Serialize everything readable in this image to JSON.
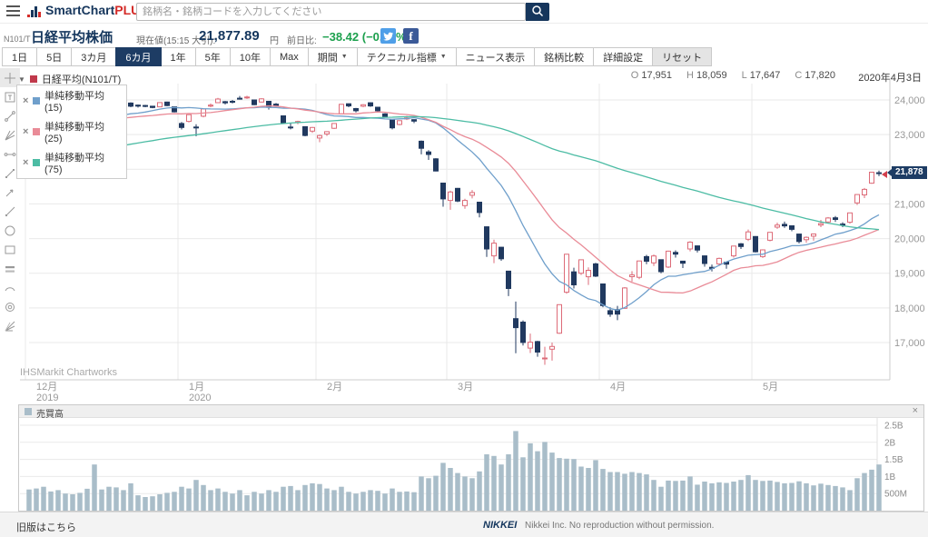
{
  "app": {
    "brand_primary": "SmartChart",
    "brand_suffix": "PLUS",
    "search_placeholder": "銘柄名・銘柄コードを入力してください"
  },
  "quote": {
    "code": "N101/T",
    "name": "日経平均株価",
    "current_label": "現在値(15:15 大引):",
    "price": "21,877.89",
    "unit": "円",
    "change_label": "前日比:",
    "change": "−38.42 (−0.18%)",
    "change_color": "#1ca04d",
    "facebook_glyph": "f"
  },
  "toolbar": {
    "periods": [
      "1日",
      "5日",
      "3カ月",
      "6カ月",
      "1年",
      "5年",
      "10年",
      "Max"
    ],
    "selected_period": "6カ月",
    "dropdowns": [
      "期間",
      "テクニカル指標"
    ],
    "actions": [
      "ニュース表示",
      "銘柄比較",
      "詳細設定"
    ],
    "reset": "リセット"
  },
  "chart": {
    "ohlc": {
      "o_label": "O",
      "o": "17,951",
      "h_label": "H",
      "h": "18,059",
      "l_label": "L",
      "l": "17,647",
      "c_label": "C",
      "c": "17,820"
    },
    "date": "2020年4月3日",
    "series_legend": {
      "label": "日経平均(N101/T)",
      "color": "#c0394b"
    },
    "overlays": [
      {
        "label": "単純移動平均 (15)",
        "color": "#6f9fcb"
      },
      {
        "label": "単純移動平均 (25)",
        "color": "#e98b97"
      },
      {
        "label": "単純移動平均 (75)",
        "color": "#4cbca4"
      }
    ],
    "price_badge": "21,878",
    "watermark": "IHSMarkit Chartworks"
  },
  "volume_panel": {
    "title": "売買高",
    "close_label": "×",
    "y_ticks": [
      "2.5B",
      "2B",
      "1.5B",
      "1B",
      "500M"
    ]
  },
  "footer": {
    "old_version": "旧版はこちら",
    "nikkei_logo": "NIKKEI",
    "copyright": "Nikkei Inc. No reproduction without permission."
  },
  "drawing_tools": [
    "crosshair-tool",
    "text-annotation-tool",
    "trendline-tool",
    "fan-line-tool",
    "measure-tool",
    "segment-tool",
    "arrow-line-tool",
    "ray-line-tool",
    "ellipse-tool",
    "rectangle-tool",
    "parallel-channel-tool",
    "arc-tool",
    "circle-target-tool",
    "fibonacci-fan-tool"
  ],
  "chart_data": {
    "type": "candlestick",
    "instrument": "日経平均株価 (N101/T)",
    "timeframe": "6カ月 (daily)",
    "y_axis_ticks": [
      24000,
      23000,
      22000,
      21000,
      20000,
      19000,
      18000,
      17000
    ],
    "volume_ticks": [
      2500,
      2000,
      1500,
      1000,
      500
    ],
    "current_price": 21877.89,
    "months": [
      {
        "label": "12月",
        "sublabel": "2019",
        "day_index": 0
      },
      {
        "label": "1月",
        "sublabel": "2020",
        "day_index": 21
      },
      {
        "label": "2月",
        "sublabel": "",
        "day_index": 40
      },
      {
        "label": "3月",
        "sublabel": "",
        "day_index": 58
      },
      {
        "label": "4月",
        "sublabel": "",
        "day_index": 79
      },
      {
        "label": "5月",
        "sublabel": "",
        "day_index": 100
      }
    ],
    "sma_windows": [
      {
        "window": 15,
        "color": "#6f9fcb"
      },
      {
        "window": 25,
        "color": "#e98b97"
      },
      {
        "window": 75,
        "color": "#4cbca4"
      }
    ],
    "sma_seed_anchors": [
      20420,
      20610,
      21050,
      21460,
      21710,
      22050,
      22380,
      22750,
      23050,
      23290,
      23380,
      23300
    ],
    "colors": {
      "up_fill": "#ffffff",
      "up_border": "#dd6b78",
      "down": "#20395f",
      "volume": "#a9bdc9"
    },
    "candles": [
      [
        23400,
        23530,
        23350,
        23529,
        620
      ],
      [
        23430,
        23450,
        23280,
        23379,
        650
      ],
      [
        23250,
        23270,
        23060,
        23135,
        700
      ],
      [
        23220,
        23330,
        23180,
        23300,
        560
      ],
      [
        23370,
        23420,
        23270,
        23354,
        600
      ],
      [
        23410,
        23470,
        23350,
        23430,
        500
      ],
      [
        23400,
        23450,
        23340,
        23410,
        480
      ],
      [
        23430,
        23450,
        23360,
        23391,
        520
      ],
      [
        23450,
        23480,
        23360,
        23424,
        640
      ],
      [
        23780,
        24050,
        23760,
        24023,
        1350
      ],
      [
        24020,
        24040,
        23900,
        23952,
        620
      ],
      [
        24010,
        24091,
        23980,
        24066,
        700
      ],
      [
        24050,
        24060,
        23920,
        23934,
        680
      ],
      [
        23930,
        23950,
        23820,
        23864,
        600
      ],
      [
        23910,
        23930,
        23790,
        23817,
        800
      ],
      [
        23850,
        23870,
        23780,
        23821,
        450
      ],
      [
        23840,
        23860,
        23790,
        23830,
        400
      ],
      [
        23820,
        23830,
        23760,
        23782,
        420
      ],
      [
        23800,
        23930,
        23790,
        23924,
        480
      ],
      [
        23940,
        23950,
        23820,
        23837,
        520
      ],
      [
        23800,
        23810,
        23640,
        23656,
        550
      ],
      [
        23320,
        23365,
        23149,
        23205,
        700
      ],
      [
        23380,
        23580,
        23350,
        23575,
        650
      ],
      [
        23220,
        23300,
        22951,
        23204,
        900
      ],
      [
        23530,
        23750,
        23500,
        23740,
        750
      ],
      [
        23820,
        23900,
        23790,
        23850,
        600
      ],
      [
        23920,
        24060,
        23910,
        24025,
        650
      ],
      [
        23950,
        23970,
        23870,
        23916,
        550
      ],
      [
        23960,
        24000,
        23900,
        23933,
        500
      ],
      [
        24050,
        24115,
        24010,
        24041,
        600
      ],
      [
        24080,
        24120,
        24030,
        24084,
        450
      ],
      [
        24000,
        24010,
        23850,
        23864,
        550
      ],
      [
        23940,
        24050,
        23930,
        24031,
        500
      ],
      [
        23960,
        23970,
        23720,
        23795,
        600
      ],
      [
        23880,
        23910,
        23800,
        23827,
        550
      ],
      [
        23540,
        23550,
        23320,
        23344,
        700
      ],
      [
        23220,
        23320,
        23150,
        23216,
        720
      ],
      [
        23350,
        23400,
        23300,
        23379,
        600
      ],
      [
        23230,
        23240,
        22950,
        22977,
        750
      ],
      [
        23100,
        23220,
        23050,
        23205,
        800
      ],
      [
        22900,
        23000,
        22780,
        22972,
        780
      ],
      [
        23020,
        23100,
        22960,
        23085,
        650
      ],
      [
        23180,
        23330,
        23160,
        23320,
        600
      ],
      [
        23600,
        23880,
        23580,
        23874,
        700
      ],
      [
        23890,
        23900,
        23790,
        23828,
        550
      ],
      [
        23750,
        23770,
        23640,
        23686,
        500
      ],
      [
        23820,
        23880,
        23790,
        23861,
        550
      ],
      [
        23920,
        23930,
        23800,
        23828,
        600
      ],
      [
        23790,
        23800,
        23660,
        23687,
        580
      ],
      [
        23600,
        23620,
        23500,
        23524,
        500
      ],
      [
        23430,
        23440,
        23150,
        23194,
        650
      ],
      [
        23290,
        23410,
        23270,
        23401,
        550
      ],
      [
        23470,
        23540,
        23420,
        23479,
        560
      ],
      [
        23430,
        23440,
        23330,
        23387,
        540
      ],
      [
        22810,
        22830,
        22430,
        22605,
        1000
      ],
      [
        22500,
        22550,
        22270,
        22426,
        950
      ],
      [
        22300,
        22320,
        21940,
        21948,
        1020
      ],
      [
        21600,
        21610,
        20920,
        21143,
        1400
      ],
      [
        21100,
        21380,
        20830,
        21344,
        1250
      ],
      [
        21450,
        21460,
        21050,
        21082,
        1100
      ],
      [
        20950,
        21150,
        20860,
        21100,
        1000
      ],
      [
        21250,
        21400,
        21160,
        21329,
        950
      ],
      [
        21050,
        21060,
        20610,
        20750,
        1150
      ],
      [
        20340,
        20350,
        19472,
        19699,
        1650
      ],
      [
        19500,
        19970,
        19290,
        19867,
        1600
      ],
      [
        19750,
        19760,
        19360,
        19416,
        1350
      ],
      [
        19060,
        19070,
        18340,
        18560,
        1650
      ],
      [
        17690,
        18184,
        16691,
        17431,
        2330
      ],
      [
        17590,
        17640,
        16914,
        17002,
        1560
      ],
      [
        16840,
        17260,
        16700,
        17011,
        1970
      ],
      [
        17030,
        17050,
        16590,
        16727,
        1740
      ],
      [
        16550,
        16880,
        16358,
        16553,
        2010
      ],
      [
        16810,
        17000,
        16480,
        16888,
        1700
      ],
      [
        17270,
        18100,
        17250,
        18092,
        1540
      ],
      [
        18450,
        19560,
        18410,
        19547,
        1520
      ],
      [
        19040,
        19160,
        18560,
        18665,
        1510
      ],
      [
        19000,
        19400,
        18950,
        19389,
        1290
      ],
      [
        18900,
        19170,
        18660,
        19085,
        1250
      ],
      [
        19270,
        19300,
        18890,
        18917,
        1480
      ],
      [
        18690,
        18700,
        18020,
        18065,
        1220
      ],
      [
        17920,
        18020,
        17740,
        17818,
        1130
      ],
      [
        17951,
        18059,
        17647,
        17820,
        1130
      ],
      [
        17990,
        18600,
        17970,
        18576,
        1080
      ],
      [
        18900,
        19060,
        18760,
        18950,
        1130
      ],
      [
        18880,
        19360,
        18830,
        19353,
        1100
      ],
      [
        19480,
        19530,
        19260,
        19346,
        1060
      ],
      [
        19300,
        19540,
        19210,
        19499,
        900
      ],
      [
        19390,
        19400,
        19000,
        19043,
        700
      ],
      [
        19180,
        19650,
        19150,
        19638,
        880
      ],
      [
        19600,
        19660,
        19450,
        19550,
        870
      ],
      [
        19350,
        19360,
        19150,
        19290,
        880
      ],
      [
        19700,
        19922,
        19630,
        19897,
        1000
      ],
      [
        19790,
        19800,
        19600,
        19669,
        760
      ],
      [
        19500,
        19510,
        19190,
        19280,
        850
      ],
      [
        19170,
        19250,
        19050,
        19138,
        800
      ],
      [
        19270,
        19450,
        19210,
        19429,
        830
      ],
      [
        19320,
        19330,
        19130,
        19262,
        810
      ],
      [
        19500,
        19790,
        19450,
        19783,
        850
      ],
      [
        19850,
        19870,
        19700,
        19771,
        900
      ],
      [
        19980,
        20260,
        19930,
        20193,
        1040
      ],
      [
        20060,
        20070,
        19600,
        19619,
        900
      ],
      [
        19480,
        19690,
        19440,
        19674,
        870
      ],
      [
        19950,
        20185,
        19920,
        20179,
        880
      ],
      [
        20330,
        20460,
        20280,
        20390,
        840
      ],
      [
        20410,
        20490,
        20310,
        20366,
        800
      ],
      [
        20370,
        20380,
        20210,
        20267,
        810
      ],
      [
        20130,
        20140,
        19860,
        19914,
        860
      ],
      [
        19970,
        20060,
        19880,
        20037,
        800
      ],
      [
        20070,
        20140,
        19940,
        20133,
        740
      ],
      [
        20390,
        20540,
        20330,
        20433,
        790
      ],
      [
        20480,
        20620,
        20450,
        20595,
        750
      ],
      [
        20600,
        20650,
        20480,
        20552,
        720
      ],
      [
        20420,
        20470,
        20330,
        20388,
        680
      ],
      [
        20470,
        20750,
        20430,
        20741,
        600
      ],
      [
        21030,
        21280,
        20970,
        21271,
        950
      ],
      [
        21260,
        21460,
        21170,
        21419,
        1100
      ],
      [
        21600,
        21930,
        21580,
        21916,
        1200
      ],
      [
        21900,
        21960,
        21800,
        21877.89,
        1350
      ]
    ]
  }
}
